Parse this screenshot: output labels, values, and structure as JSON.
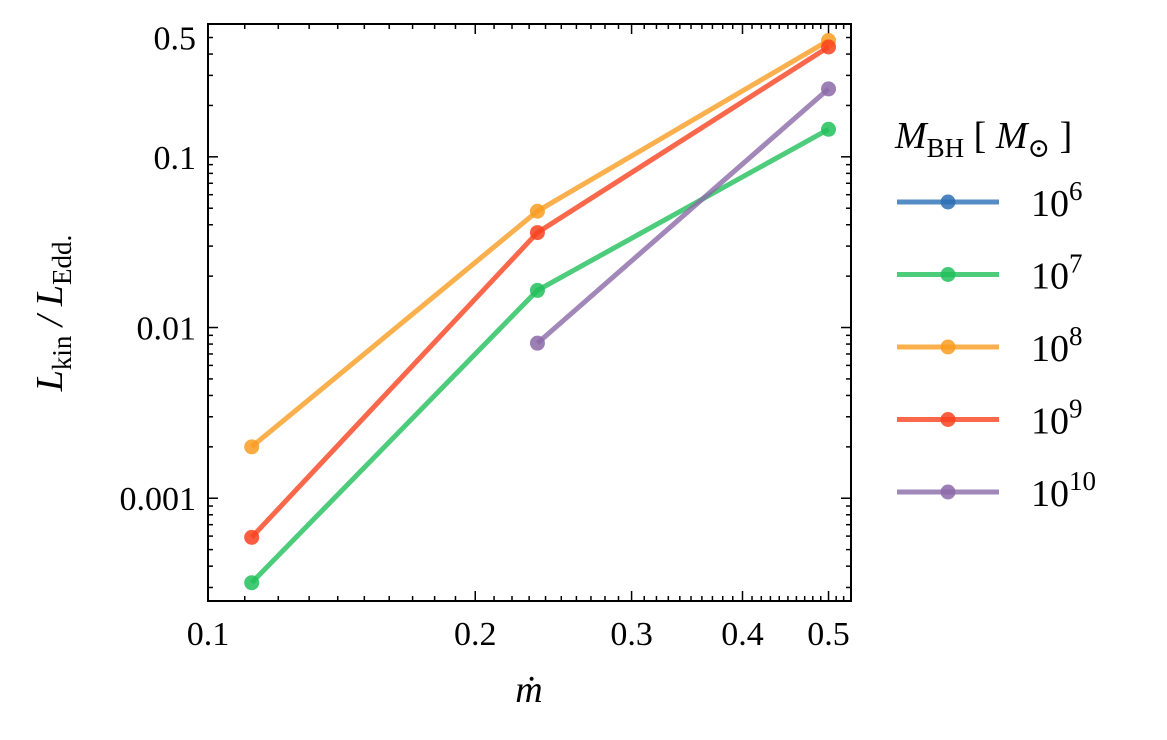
{
  "chart_data": {
    "type": "line",
    "xscale": "log",
    "yscale": "log",
    "xlim": [
      0.1,
      0.53
    ],
    "ylim": [
      0.00025,
      0.6
    ],
    "xlabel": "ṁ",
    "ylabel": {
      "main": "L",
      "sub1": "kin",
      "sep": " / L",
      "sub2": "Edd."
    },
    "xticks": [
      {
        "value": 0.1,
        "label": "0.1"
      },
      {
        "value": 0.2,
        "label": "0.2"
      },
      {
        "value": 0.3,
        "label": "0.3"
      },
      {
        "value": 0.4,
        "label": "0.4"
      },
      {
        "value": 0.5,
        "label": "0.5"
      }
    ],
    "yticks": [
      {
        "value": 0.001,
        "label": "0.001"
      },
      {
        "value": 0.01,
        "label": "0.01"
      },
      {
        "value": 0.1,
        "label": "0.1"
      },
      {
        "value": 0.5,
        "label": "0.5"
      }
    ],
    "legend": {
      "title": {
        "main": "M",
        "sub": "BH",
        "rest": " [ ",
        "unit": "M",
        "unit_sub": "⊙",
        "close": " ]"
      },
      "placement": "outside-right"
    },
    "series": [
      {
        "name": "10^6",
        "base": "10",
        "exp": "6",
        "color": "#2b6fb4",
        "x": [],
        "y": []
      },
      {
        "name": "10^7",
        "base": "10",
        "exp": "7",
        "color": "#21bf5a",
        "x": [
          0.112,
          0.235,
          0.5
        ],
        "y": [
          0.00032,
          0.0165,
          0.145
        ]
      },
      {
        "name": "10^8",
        "base": "10",
        "exp": "8",
        "color": "#f99c20",
        "x": [
          0.112,
          0.235,
          0.5
        ],
        "y": [
          0.002,
          0.048,
          0.48
        ]
      },
      {
        "name": "10^9",
        "base": "10",
        "exp": "9",
        "color": "#f9421f",
        "x": [
          0.112,
          0.235,
          0.5
        ],
        "y": [
          0.00059,
          0.036,
          0.44
        ]
      },
      {
        "name": "10^10",
        "base": "10",
        "exp": "10",
        "color": "#8b6aa8",
        "x": [
          0.235,
          0.5
        ],
        "y": [
          0.0081,
          0.25
        ]
      }
    ]
  }
}
